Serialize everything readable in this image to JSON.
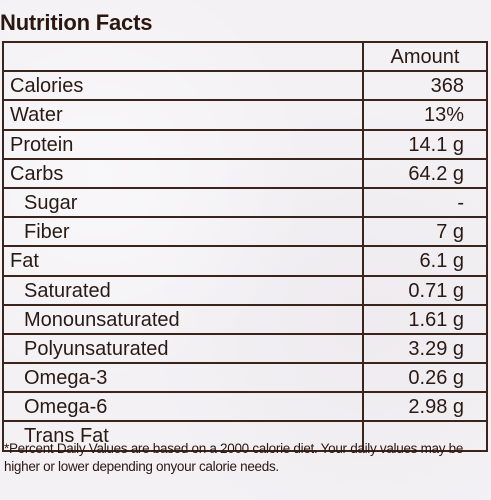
{
  "title": "Nutrition Facts",
  "table": {
    "header_amount": "Amount",
    "rows": [
      {
        "label": "Calories",
        "amount": "368"
      },
      {
        "label": "Water",
        "amount": "13%"
      },
      {
        "label": "Protein",
        "amount": "14.1 g"
      },
      {
        "label": "Carbs",
        "amount": "64.2 g"
      },
      {
        "label": "Sugar",
        "amount": "-"
      },
      {
        "label": "Fiber",
        "amount": "7 g"
      },
      {
        "label": "Fat",
        "amount": "6.1 g"
      },
      {
        "label": "Saturated",
        "amount": "0.71 g"
      },
      {
        "label": "Monounsaturated",
        "amount": "1.61 g"
      },
      {
        "label": "Polyunsaturated",
        "amount": "3.29 g"
      },
      {
        "label": "Omega-3",
        "amount": "0.26 g"
      },
      {
        "label": "Omega-6",
        "amount": "2.98 g"
      },
      {
        "label": "Trans Fat",
        "amount": ""
      }
    ]
  },
  "footnote": "*Percent Daily Values are based on a 2000 calorie diet. Your daily values may be higher or lower depending onyour calorie needs.",
  "colors": {
    "text": "#2b1710",
    "rules": "#3a241b",
    "paper": "#f3f1f4"
  }
}
